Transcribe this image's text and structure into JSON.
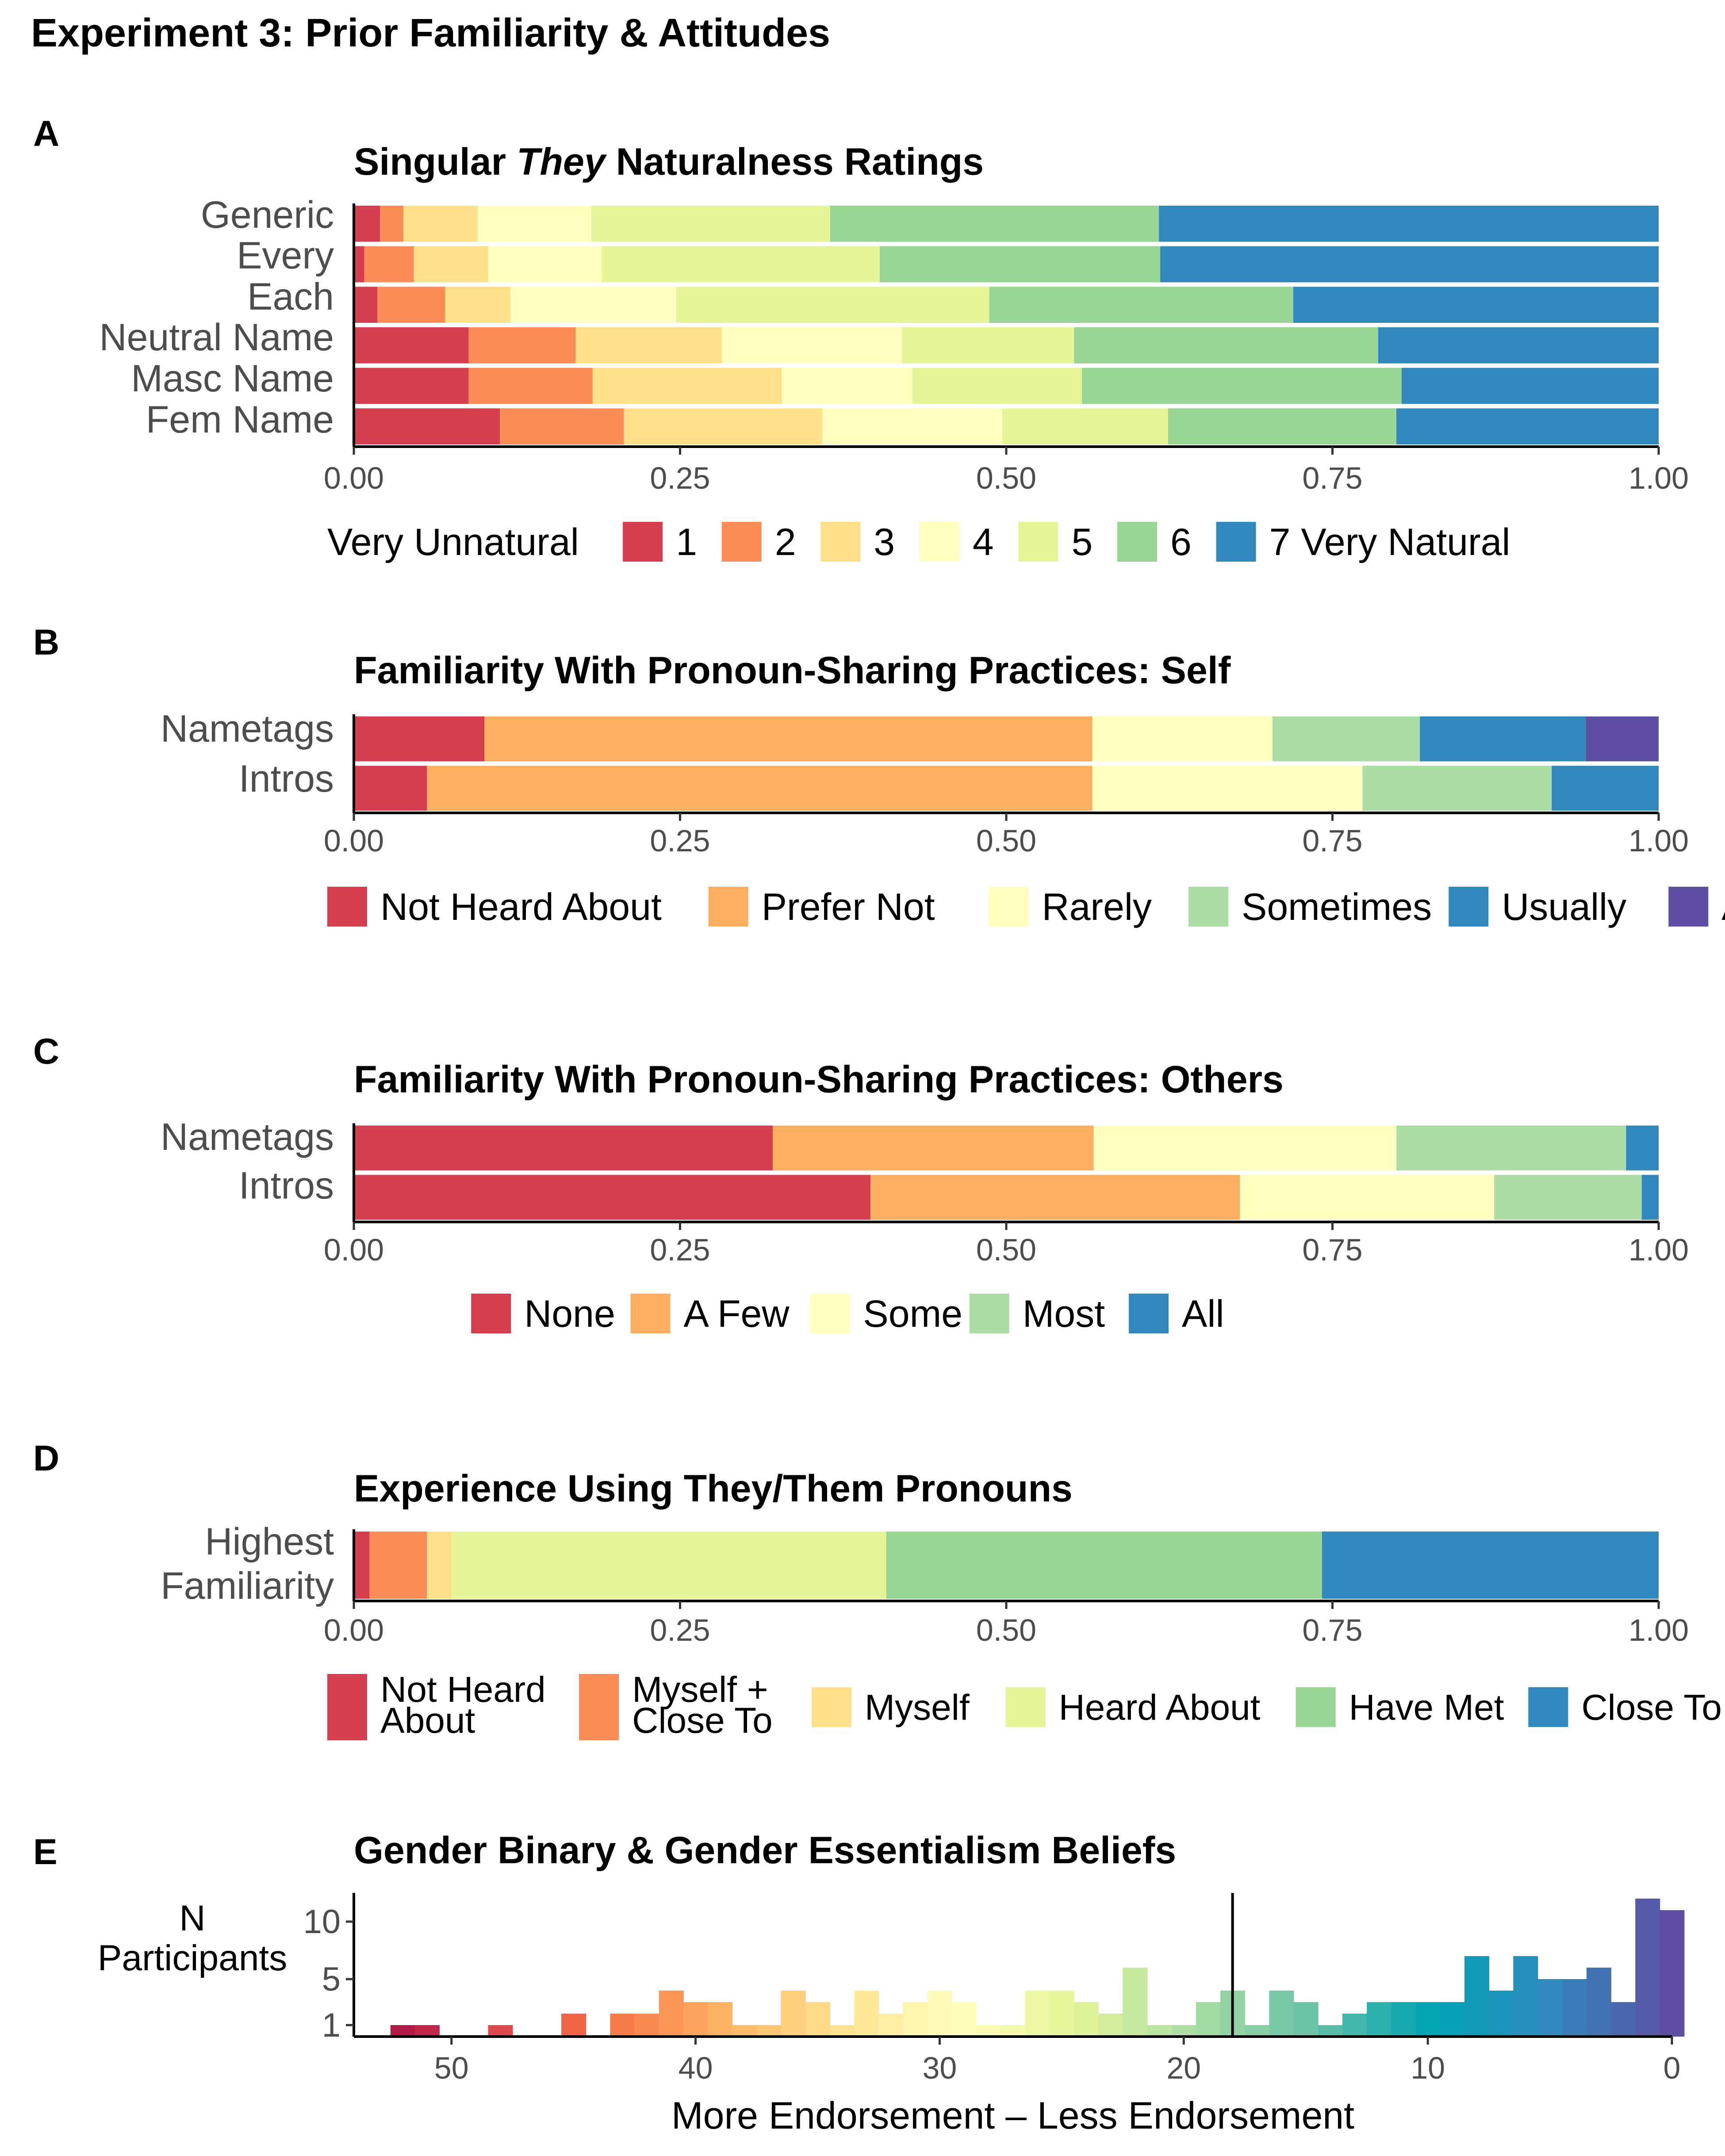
{
  "figure": {
    "title": "Experiment 3: Prior Familiarity & Attitudes"
  },
  "chart_data": [
    {
      "panel": "A",
      "type": "bar",
      "orientation": "horizontal-stacked-proportion",
      "title_parts": [
        "Singular ",
        "They",
        " Naturalness Ratings"
      ],
      "categories": [
        "Generic",
        "Every",
        "Each",
        "Neutral Name",
        "Masc Name",
        "Fem Name"
      ],
      "xlim": [
        0,
        1
      ],
      "ticks": [
        "0.00",
        "0.25",
        "0.50",
        "0.75",
        "1.00"
      ],
      "legend_lead": "Very Unnatural",
      "legend_position": "bottom",
      "series": [
        {
          "name": "1",
          "color": "#d53e4f",
          "values": [
            0.02,
            0.008,
            0.018,
            0.088,
            0.088,
            0.112
          ]
        },
        {
          "name": "2",
          "color": "#fc8d59",
          "values": [
            0.018,
            0.038,
            0.052,
            0.082,
            0.095,
            0.095
          ]
        },
        {
          "name": "3",
          "color": "#fee08b",
          "values": [
            0.057,
            0.057,
            0.05,
            0.112,
            0.145,
            0.152
          ]
        },
        {
          "name": "4",
          "color": "#ffffbf",
          "values": [
            0.087,
            0.087,
            0.127,
            0.138,
            0.1,
            0.138
          ]
        },
        {
          "name": "5",
          "color": "#e6f598",
          "values": [
            0.183,
            0.213,
            0.24,
            0.132,
            0.13,
            0.127
          ]
        },
        {
          "name": "6",
          "color": "#99d594",
          "values": [
            0.252,
            0.215,
            0.233,
            0.233,
            0.245,
            0.175
          ]
        },
        {
          "name": "7 Very Natural",
          "color": "#3288bd",
          "values": [
            0.383,
            0.382,
            0.28,
            0.215,
            0.197,
            0.201
          ]
        }
      ]
    },
    {
      "panel": "B",
      "type": "bar",
      "orientation": "horizontal-stacked-proportion",
      "title": "Familiarity With Pronoun-Sharing Practices: Self",
      "categories": [
        "Nametags",
        "Intros"
      ],
      "xlim": [
        0,
        1
      ],
      "ticks": [
        "0.00",
        "0.25",
        "0.50",
        "0.75",
        "1.00"
      ],
      "legend_position": "bottom",
      "series": [
        {
          "name": "Not Heard About",
          "color": "#d53e4f",
          "values": [
            0.1,
            0.056
          ]
        },
        {
          "name": "Prefer Not",
          "color": "#fdae61",
          "values": [
            0.466,
            0.51
          ]
        },
        {
          "name": "Rarely",
          "color": "#ffffbf",
          "values": [
            0.138,
            0.207
          ]
        },
        {
          "name": "Sometimes",
          "color": "#abdda4",
          "values": [
            0.113,
            0.145
          ]
        },
        {
          "name": "Usually",
          "color": "#3288bd",
          "values": [
            0.127,
            0.082
          ]
        },
        {
          "name": "Always",
          "color": "#5e4fa2",
          "values": [
            0.056,
            0.0
          ]
        }
      ]
    },
    {
      "panel": "C",
      "type": "bar",
      "orientation": "horizontal-stacked-proportion",
      "title": "Familiarity With Pronoun-Sharing Practices: Others",
      "categories": [
        "Nametags",
        "Intros"
      ],
      "xlim": [
        0,
        1
      ],
      "ticks": [
        "0.00",
        "0.25",
        "0.50",
        "0.75",
        "1.00"
      ],
      "legend_position": "bottom",
      "series": [
        {
          "name": "None",
          "color": "#d53e4f",
          "values": [
            0.321,
            0.396
          ]
        },
        {
          "name": "A Few",
          "color": "#fdae61",
          "values": [
            0.246,
            0.283
          ]
        },
        {
          "name": "Some",
          "color": "#ffffbf",
          "values": [
            0.232,
            0.195
          ]
        },
        {
          "name": "Most",
          "color": "#abdda4",
          "values": [
            0.176,
            0.113
          ]
        },
        {
          "name": "All",
          "color": "#3288bd",
          "values": [
            0.025,
            0.013
          ]
        }
      ]
    },
    {
      "panel": "D",
      "type": "bar",
      "orientation": "horizontal-stacked-proportion",
      "title": "Experience Using They/Them Pronouns",
      "categories": [
        [
          "Highest",
          "Familiarity"
        ]
      ],
      "xlim": [
        0,
        1
      ],
      "ticks": [
        "0.00",
        "0.25",
        "0.50",
        "0.75",
        "1.00"
      ],
      "legend_position": "bottom",
      "series": [
        {
          "name": [
            "Not Heard",
            "About"
          ],
          "color": "#d53e4f",
          "values": [
            0.012
          ]
        },
        {
          "name": [
            "Myself +",
            "Close To"
          ],
          "color": "#fc8d59",
          "values": [
            0.044
          ]
        },
        {
          "name": [
            "Myself"
          ],
          "color": "#fee08b",
          "values": [
            0.019
          ]
        },
        {
          "name": [
            "Heard About"
          ],
          "color": "#e6f598",
          "values": [
            0.333
          ]
        },
        {
          "name": [
            "Have Met"
          ],
          "color": "#99d594",
          "values": [
            0.334
          ]
        },
        {
          "name": [
            "Close To"
          ],
          "color": "#3288bd",
          "values": [
            0.258
          ]
        }
      ]
    },
    {
      "panel": "E",
      "type": "bar",
      "subtype": "histogram",
      "title": "Gender Binary & Gender Essentialism Beliefs",
      "xlabel": "More Endorsement – Less Endorsement",
      "ylabel": [
        "N",
        "Participants"
      ],
      "xlim": [
        54,
        0
      ],
      "ylim": [
        0,
        12.5
      ],
      "x_ticks": [
        50,
        40,
        30,
        20,
        10,
        0
      ],
      "y_ticks": [
        1,
        5,
        10
      ],
      "vline": 18,
      "bin_centers": [
        52,
        51,
        48,
        45,
        43,
        42,
        41,
        40,
        39,
        38,
        37,
        36,
        35,
        34,
        33,
        32,
        31,
        30,
        29,
        28,
        27,
        26,
        25,
        24,
        23,
        22,
        21,
        20,
        19,
        18,
        17,
        16,
        15,
        14,
        13,
        12,
        11,
        10,
        9,
        8,
        7,
        6,
        5,
        4,
        3,
        2,
        1,
        0
      ],
      "counts": [
        1,
        1,
        1,
        2,
        2,
        2,
        4,
        3,
        3,
        1,
        1,
        4,
        3,
        1,
        4,
        2,
        3,
        4,
        3,
        1,
        1,
        4,
        4,
        3,
        2,
        6,
        1,
        1,
        3,
        4,
        1,
        4,
        3,
        1,
        2,
        3,
        3,
        3,
        3,
        7,
        4,
        7,
        5,
        5,
        6,
        3,
        12,
        11
      ]
    }
  ]
}
